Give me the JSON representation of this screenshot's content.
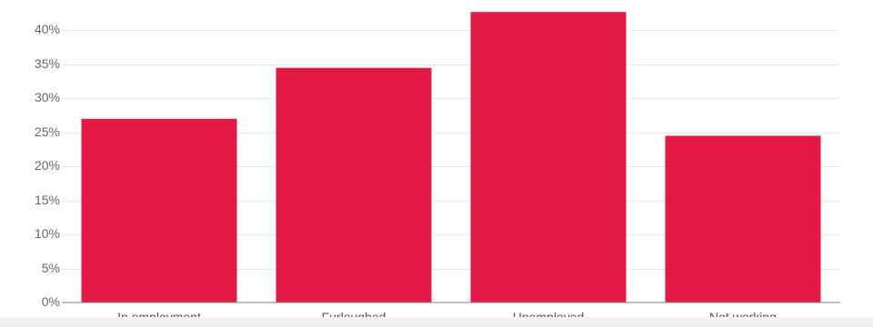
{
  "chart_data": {
    "type": "bar",
    "categories": [
      "In employment",
      "Furloughed",
      "Unemployed",
      "Not working"
    ],
    "values": [
      27,
      34.5,
      42.7,
      24.5
    ],
    "ylim": [
      0,
      43
    ],
    "yticks": [
      0,
      5,
      10,
      15,
      20,
      25,
      30,
      35,
      40
    ],
    "ytick_labels": [
      "0%",
      "5%",
      "10%",
      "15%",
      "20%",
      "25%",
      "30%",
      "35%",
      "40%"
    ],
    "grid": true,
    "bar_color": "#e21a45"
  }
}
